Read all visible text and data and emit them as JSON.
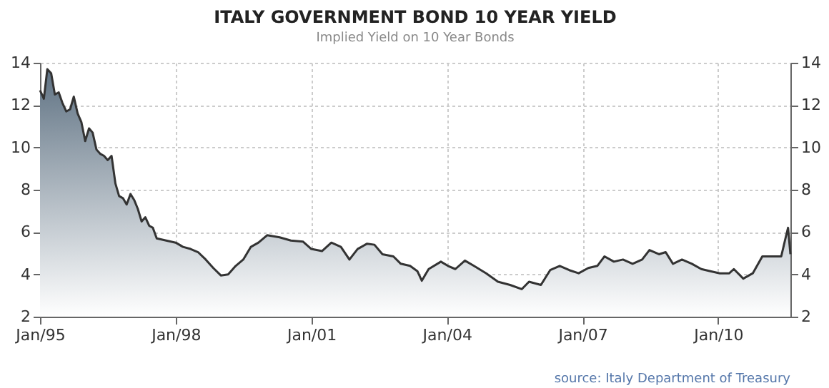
{
  "chart_data": {
    "type": "area",
    "title": "ITALY GOVERNMENT BOND 10 YEAR YIELD",
    "subtitle": "Implied Yield on 10 Year Bonds",
    "annotations": [
      "source: Italy Department of Treasury"
    ],
    "x": [
      "1995-01-01",
      "1995-02-01",
      "1995-03-01",
      "1995-04-01",
      "1995-05-01",
      "1995-06-01",
      "1995-07-01",
      "1995-08-01",
      "1995-09-01",
      "1995-10-01",
      "1995-11-01",
      "1995-12-01",
      "1996-01-01",
      "1996-02-01",
      "1996-03-01",
      "1996-04-01",
      "1996-05-01",
      "1996-06-01",
      "1996-07-01",
      "1996-08-01",
      "1996-09-01",
      "1996-10-01",
      "1996-11-01",
      "1996-12-01",
      "1997-01-01",
      "1997-02-01",
      "1997-03-01",
      "1997-04-01",
      "1997-05-01",
      "1997-06-01",
      "1997-07-01",
      "1997-08-01",
      "1998-01-01",
      "1998-03-01",
      "1998-05-01",
      "1998-07-01",
      "1998-09-01",
      "1998-11-01",
      "1999-01-01",
      "1999-03-01",
      "1999-05-01",
      "1999-07-01",
      "1999-09-01",
      "1999-11-01",
      "2000-01-10",
      "2000-04-20",
      "2000-07-20",
      "2000-10-25",
      "2001-01-01",
      "2001-03-28",
      "2001-06-12",
      "2001-08-28",
      "2001-11-05",
      "2002-01-10",
      "2002-03-28",
      "2002-05-26",
      "2002-07-30",
      "2002-10-26",
      "2002-12-25",
      "2003-03-10",
      "2003-05-08",
      "2003-06-13",
      "2003-08-07",
      "2003-11-14",
      "2004-01-10",
      "2004-03-10",
      "2004-05-26",
      "2004-08-07",
      "2004-11-14",
      "2005-02-17",
      "2005-05-26",
      "2005-08-28",
      "2005-10-26",
      "2006-01-30",
      "2006-04-15",
      "2006-07-01",
      "2006-09-16",
      "2006-12-01",
      "2007-02-17",
      "2007-05-01",
      "2007-06-28",
      "2007-09-12",
      "2007-11-24",
      "2008-02-10",
      "2008-04-27",
      "2008-06-25",
      "2008-09-10",
      "2008-11-03",
      "2009-01-01",
      "2009-03-15",
      "2009-06-03",
      "2009-08-18",
      "2009-10-30",
      "2010-01-15",
      "2010-04-01",
      "2010-05-08",
      "2010-07-23",
      "2010-10-08",
      "2010-12-24",
      "2011-03-10",
      "2011-05-26",
      "2011-07-01",
      "2011-07-20",
      "2011-08-08"
    ],
    "series": [
      {
        "color": "#5f7283",
        "values": [
          12.7,
          12.3,
          13.7,
          13.5,
          12.5,
          12.6,
          12.1,
          11.7,
          11.8,
          12.4,
          11.6,
          11.2,
          10.3,
          10.9,
          10.7,
          9.9,
          9.7,
          9.6,
          9.4,
          9.6,
          8.3,
          7.7,
          7.6,
          7.3,
          7.8,
          7.5,
          7.1,
          6.5,
          6.7,
          6.3,
          6.2,
          5.7,
          5.5,
          5.3,
          5.2,
          5.05,
          4.7,
          4.3,
          3.95,
          4.0,
          4.4,
          4.7,
          5.3,
          5.5,
          5.85,
          5.75,
          5.6,
          5.55,
          5.2,
          5.1,
          5.5,
          5.3,
          4.7,
          5.2,
          5.45,
          5.4,
          4.95,
          4.85,
          4.5,
          4.4,
          4.15,
          3.7,
          4.25,
          4.6,
          4.4,
          4.25,
          4.65,
          4.4,
          4.05,
          3.65,
          3.5,
          3.3,
          3.65,
          3.5,
          4.2,
          4.4,
          4.2,
          4.05,
          4.3,
          4.4,
          4.85,
          4.6,
          4.7,
          4.5,
          4.7,
          5.15,
          4.95,
          5.05,
          4.5,
          4.7,
          4.5,
          4.25,
          4.15,
          4.05,
          4.05,
          4.25,
          3.8,
          4.05,
          4.85,
          4.85,
          4.85,
          5.75,
          6.2,
          4.95
        ]
      }
    ],
    "xlim": [
      "1995-01-01",
      "2011-08-08"
    ],
    "xticks": [
      {
        "value": "1995-01-01",
        "label": "Jan/95"
      },
      {
        "value": "1998-01-01",
        "label": "Jan/98"
      },
      {
        "value": "2001-01-01",
        "label": "Jan/01"
      },
      {
        "value": "2004-01-01",
        "label": "Jan/04"
      },
      {
        "value": "2007-01-01",
        "label": "Jan/07"
      },
      {
        "value": "2010-01-01",
        "label": "Jan/10"
      }
    ],
    "ylim": [
      2,
      14
    ],
    "yticks": [
      2,
      4,
      6,
      8,
      10,
      12,
      14
    ],
    "y2lim": [
      2,
      14
    ],
    "y2ticks": [
      2,
      4,
      6,
      8,
      10,
      12,
      14
    ],
    "grid": true
  }
}
